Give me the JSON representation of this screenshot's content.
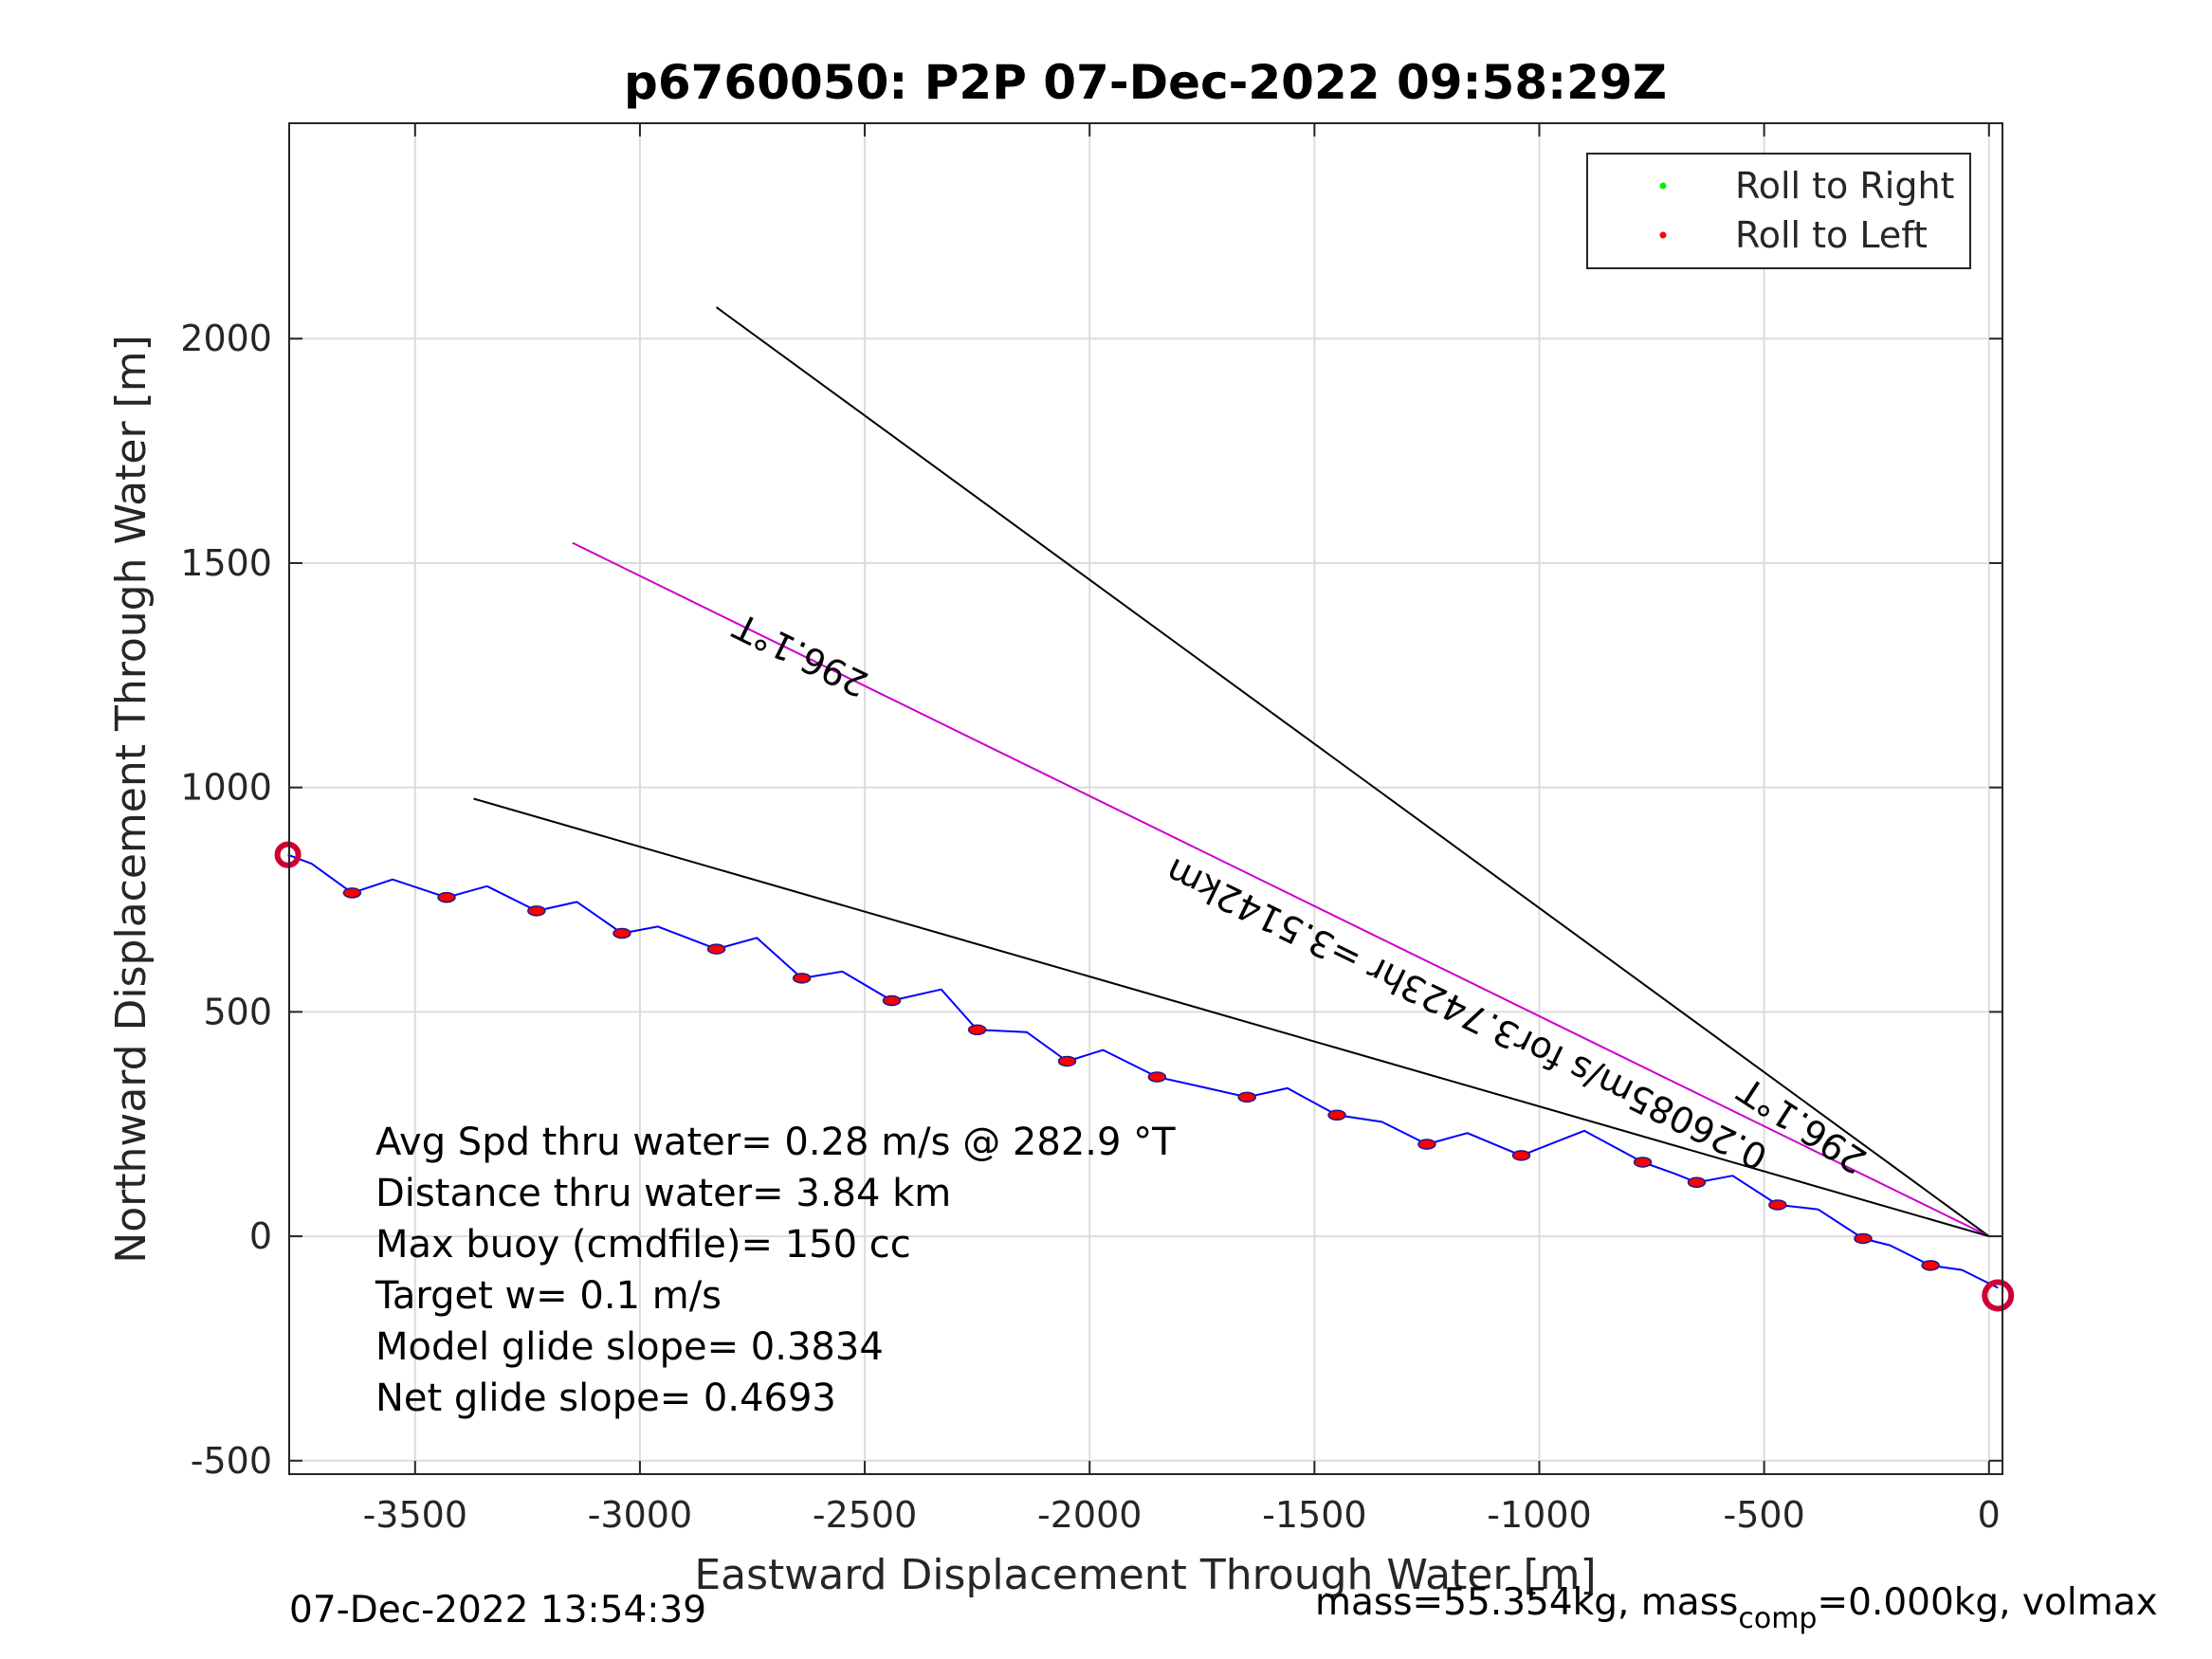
{
  "chart_data": {
    "type": "line",
    "title": "p6760050: P2P 07-Dec-2022 09:58:29Z",
    "xlabel": "Eastward Displacement Through Water [m]",
    "ylabel": "Northward Displacement Through Water [m]",
    "xlim": [
      -3780,
      30
    ],
    "ylim": [
      -530,
      2480
    ],
    "xticks": [
      -3500,
      -3000,
      -2500,
      -2000,
      -1500,
      -1000,
      -500,
      0
    ],
    "xtick_labels": [
      "-3500",
      "-3000",
      "-2500",
      "-2000",
      "-1500",
      "-1000",
      "-500",
      "0"
    ],
    "yticks": [
      -500,
      0,
      500,
      1000,
      1500,
      2000
    ],
    "ytick_labels": [
      "-500",
      "0",
      "500",
      "1000",
      "1500",
      "2000"
    ],
    "grid": true,
    "legend": {
      "placement": "top-right",
      "entries": [
        {
          "name": "Roll to Right",
          "color": "#00ee00"
        },
        {
          "name": "Roll to Left",
          "color": "#ff0000"
        }
      ]
    },
    "track": {
      "color": "#0000ff",
      "x": [
        -3783,
        -3730,
        -3640,
        -3550,
        -3430,
        -3340,
        -3230,
        -3140,
        -3040,
        -2960,
        -2830,
        -2740,
        -2640,
        -2550,
        -2440,
        -2330,
        -2250,
        -2140,
        -2050,
        -1970,
        -1850,
        -1760,
        -1650,
        -1560,
        -1450,
        -1350,
        -1250,
        -1160,
        -1040,
        -900,
        -770,
        -700,
        -650,
        -570,
        -470,
        -380,
        -280,
        -220,
        -130,
        -60,
        20
      ],
      "y": [
        850,
        830,
        765,
        795,
        755,
        780,
        725,
        745,
        675,
        690,
        640,
        665,
        575,
        590,
        525,
        550,
        460,
        455,
        390,
        415,
        355,
        335,
        310,
        330,
        270,
        255,
        205,
        230,
        180,
        235,
        165,
        140,
        120,
        135,
        70,
        60,
        -5,
        -20,
        -65,
        -75,
        -115
      ]
    },
    "dive_markers": {
      "color": "#ff0000",
      "x": [
        -3640,
        -3430,
        -3230,
        -3040,
        -2830,
        -2640,
        -2440,
        -2250,
        -2050,
        -1850,
        -1650,
        -1450,
        -1250,
        -1040,
        -770,
        -650,
        -470,
        -280,
        -130
      ],
      "y": [
        765,
        755,
        725,
        675,
        640,
        575,
        525,
        460,
        390,
        355,
        310,
        270,
        205,
        180,
        165,
        120,
        70,
        -5,
        -65
      ]
    },
    "reference_lines": [
      {
        "name": "upper",
        "color": "#000000",
        "x": [
          0,
          -2830
        ],
        "y": [
          0,
          2070
        ]
      },
      {
        "name": "middle",
        "color": "#cc00cc",
        "x": [
          0,
          -3150
        ],
        "y": [
          0,
          1545
        ]
      },
      {
        "name": "lower",
        "color": "#000000",
        "x": [
          0,
          -3370
        ],
        "y": [
          0,
          975
        ]
      }
    ],
    "annotations": [
      {
        "text": "296.1°T",
        "x": -2630,
        "y": 1320,
        "rotation": 206
      },
      {
        "text": "296.1°T",
        "x": -400,
        "y": 270,
        "rotation": 213
      },
      {
        "text": "0.26085m/s for3.7423hr =3.5142km",
        "x": -1150,
        "y": 520,
        "rotation": 206
      }
    ],
    "stats": [
      "Avg Spd thru water=  0.28 m/s @ 282.9 °T",
      "Distance thru water=  3.84 km",
      "Max buoy (cmdfile)= 150 cc",
      "Target w= 0.1 m/s",
      "Model glide slope= 0.3834",
      "Net glide slope= 0.4693"
    ]
  },
  "footer": {
    "timestamp": "07-Dec-2022 13:54:39",
    "mass_text": "mass=55.354kg, mass",
    "mass_sub": "comp",
    "mass_tail": "=0.000kg, volmax"
  }
}
